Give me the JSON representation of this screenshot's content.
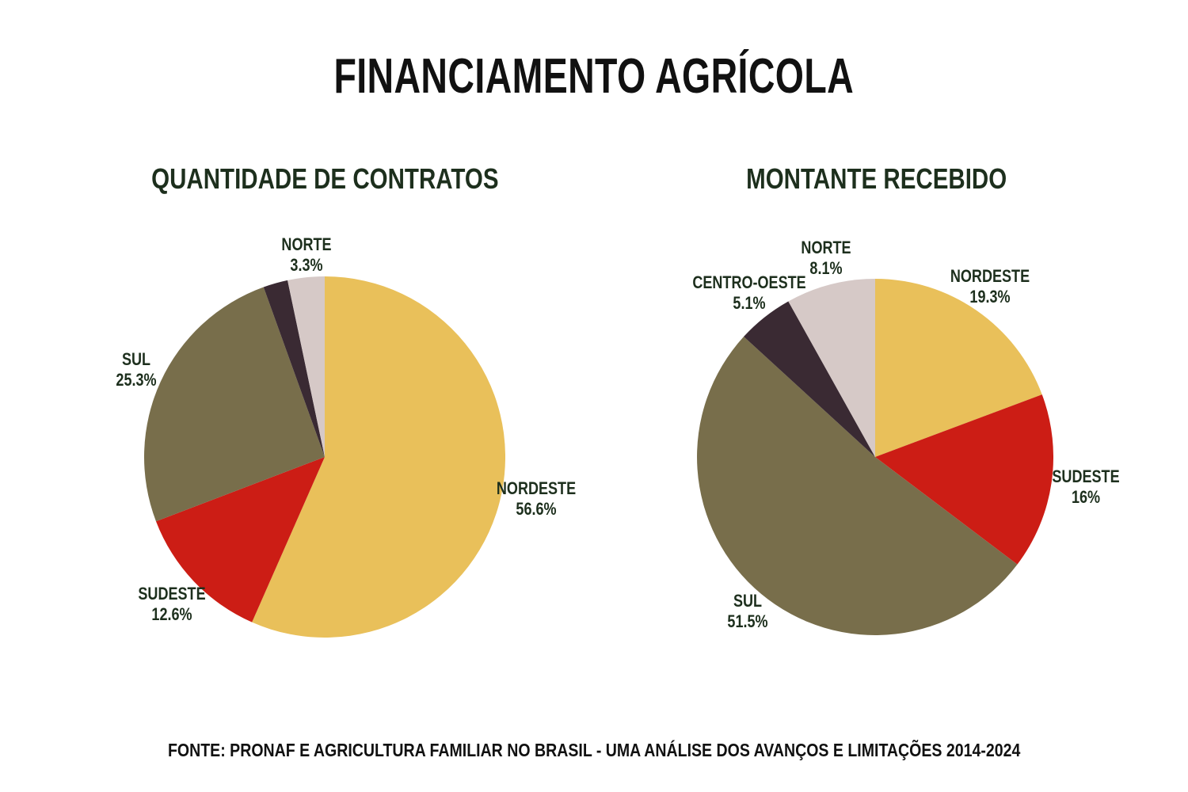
{
  "page": {
    "title": "FINANCIAMENTO AGRÍCOLA",
    "footer": "FONTE: PRONAF E AGRICULTURA FAMILIAR NO BRASIL - UMA ANÁLISE DOS AVANÇOS E LIMITAÇÕES 2014-2024"
  },
  "colors": {
    "background": "#FFFFFF",
    "title_text": "#111111",
    "label_text": "#1D2F1D",
    "nordeste": "#E9C05A",
    "sudeste": "#CC1D15",
    "sul": "#786E4B",
    "centro_oeste": "#3A2A33",
    "norte": "#D6C9C7"
  },
  "chart_data": [
    {
      "type": "pie",
      "title": "QUANTIDADE DE CONTRATOS",
      "start_angle_deg": -90,
      "direction": "clockwise",
      "legend_position": "none",
      "slices": [
        {
          "name": "NORDESTE",
          "value": 56.6,
          "display": "56.6%",
          "color": "#E9C05A",
          "label_visible": true
        },
        {
          "name": "SUDESTE",
          "value": 12.6,
          "display": "12.6%",
          "color": "#CC1D15",
          "label_visible": true
        },
        {
          "name": "SUL",
          "value": 25.3,
          "display": "25.3%",
          "color": "#786E4B",
          "label_visible": true
        },
        {
          "name": "CENTRO-OESTE",
          "value": 2.2,
          "display": "",
          "color": "#3A2A33",
          "label_visible": false
        },
        {
          "name": "NORTE",
          "value": 3.3,
          "display": "3.3%",
          "color": "#D6C9C7",
          "label_visible": true
        }
      ]
    },
    {
      "type": "pie",
      "title": "MONTANTE RECEBIDO",
      "start_angle_deg": -90,
      "direction": "clockwise",
      "legend_position": "none",
      "slices": [
        {
          "name": "NORDESTE",
          "value": 19.3,
          "display": "19.3%",
          "color": "#E9C05A",
          "label_visible": true
        },
        {
          "name": "SUDESTE",
          "value": 16,
          "display": "16%",
          "color": "#CC1D15",
          "label_visible": true
        },
        {
          "name": "SUL",
          "value": 51.5,
          "display": "51.5%",
          "color": "#786E4B",
          "label_visible": true
        },
        {
          "name": "CENTRO-OESTE",
          "value": 5.1,
          "display": "5.1%",
          "color": "#3A2A33",
          "label_visible": true
        },
        {
          "name": "NORTE",
          "value": 8.1,
          "display": "8.1%",
          "color": "#D6C9C7",
          "label_visible": true
        }
      ]
    }
  ]
}
